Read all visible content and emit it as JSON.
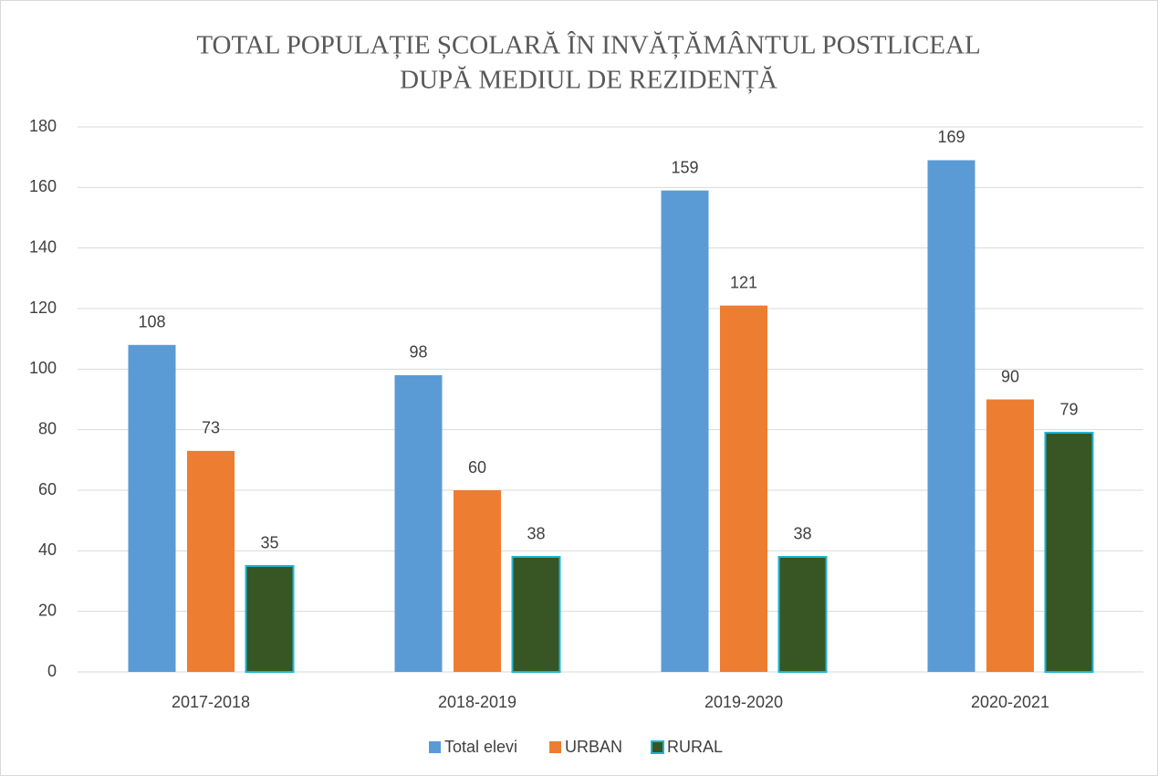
{
  "chart_data": {
    "type": "bar",
    "title": [
      "TOTAL POPULAȚIE ȘCOLARĂ ÎN INVĂȚĂMÂNTUL POSTLICEAL",
      "DUPĂ MEDIUL DE REZIDENȚĂ"
    ],
    "categories": [
      "2017-2018",
      "2018-2019",
      "2019-2020",
      "2020-2021"
    ],
    "series": [
      {
        "name": "Total elevi",
        "color": "#5b9bd5",
        "values": [
          108,
          98,
          159,
          169
        ]
      },
      {
        "name": "URBAN",
        "color": "#ed7d31",
        "values": [
          73,
          60,
          121,
          90
        ]
      },
      {
        "name": "RURAL",
        "color": "#375623",
        "edgecolor": "#1fb5d4",
        "values": [
          35,
          38,
          38,
          79
        ]
      }
    ],
    "ylim": [
      0,
      180
    ],
    "yticks": [
      0,
      20,
      40,
      60,
      80,
      100,
      120,
      140,
      160,
      180
    ],
    "grid": true,
    "legend": "bottom",
    "data_labels": true
  }
}
